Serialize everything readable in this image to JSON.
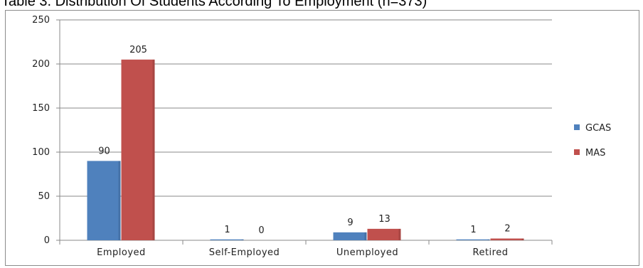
{
  "caption": "Table 3.  Distribution Of Students According To Employment (n=373)",
  "chart_data": {
    "type": "bar",
    "title": "",
    "xlabel": "",
    "ylabel": "",
    "categories": [
      "Employed",
      "Self-Employed",
      "Unemployed",
      "Retired"
    ],
    "series": [
      {
        "name": "GCAS",
        "values": [
          90,
          1,
          9,
          1
        ],
        "color": "#4f81bd"
      },
      {
        "name": "MAS",
        "values": [
          205,
          0,
          13,
          2
        ],
        "color": "#c0504d"
      }
    ],
    "ylim": [
      0,
      250
    ],
    "yticks": [
      0,
      50,
      100,
      150,
      200,
      250
    ],
    "grid": true,
    "legend_position": "right"
  }
}
